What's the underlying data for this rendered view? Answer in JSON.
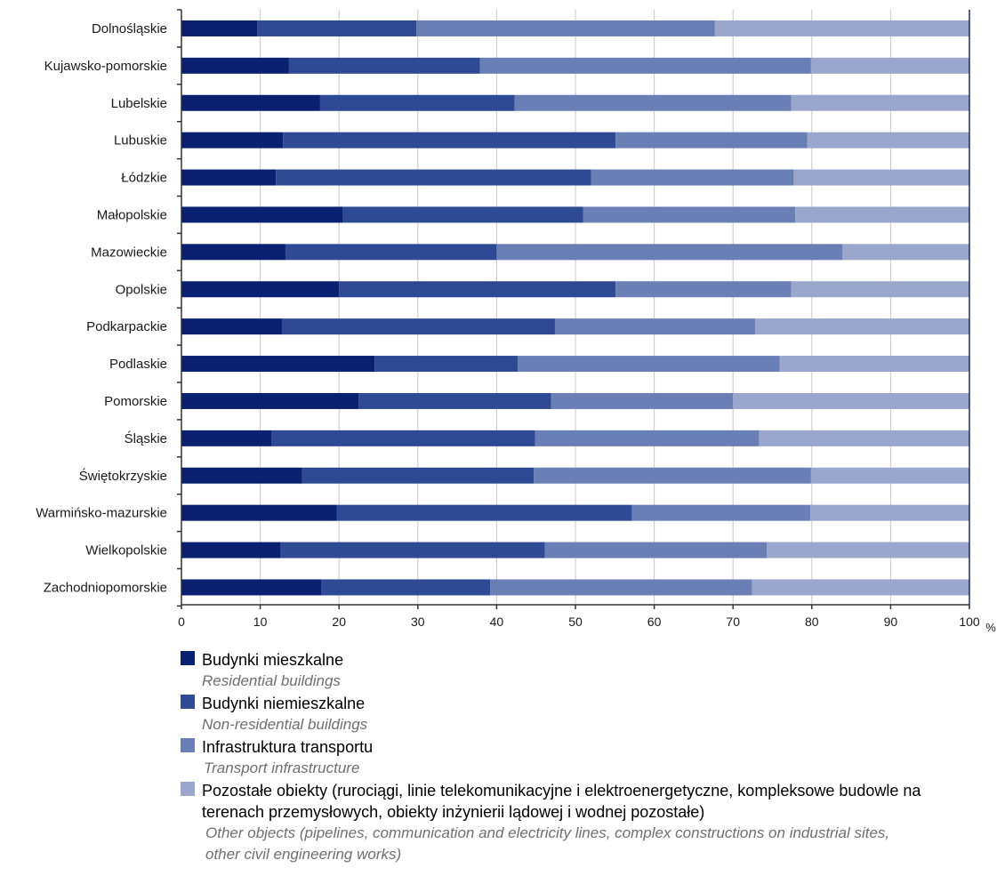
{
  "chart_data": {
    "type": "bar",
    "orientation": "horizontal",
    "stacked": true,
    "categories": [
      "Dolnośląskie",
      "Kujawsko-pomorskie",
      "Lubelskie",
      "Lubuskie",
      "Łódzkie",
      "Małopolskie",
      "Mazowieckie",
      "Opolskie",
      "Podkarpackie",
      "Podlaskie",
      "Pomorskie",
      "Śląskie",
      "Świętokrzyskie",
      "Warmińsko-mazurskie",
      "Wielkopolskie",
      "Zachodniopomorskie"
    ],
    "series": [
      {
        "name": "Budynki mieszkalne",
        "name_en": "Residential buildings",
        "color": "#0a2070",
        "values": [
          9.6,
          13.6,
          17.6,
          12.9,
          12.0,
          20.5,
          13.2,
          20.0,
          12.8,
          24.5,
          22.5,
          11.4,
          15.3,
          19.7,
          12.6,
          17.8
        ]
      },
      {
        "name": "Budynki niemieszkalne",
        "name_en": "Non-residential buildings",
        "color": "#2f4a94",
        "values": [
          20.2,
          24.3,
          24.7,
          42.2,
          40.0,
          30.5,
          26.8,
          35.1,
          34.6,
          18.2,
          24.4,
          33.5,
          29.4,
          37.5,
          33.5,
          21.4
        ]
      },
      {
        "name": "Infrastruktura transportu",
        "name_en": "Transport infrastructure",
        "color": "#6a7fb5",
        "values": [
          37.9,
          42.0,
          35.1,
          24.3,
          25.7,
          26.9,
          43.9,
          22.3,
          25.4,
          33.2,
          23.1,
          28.4,
          35.2,
          22.6,
          28.2,
          33.2
        ]
      },
      {
        "name": "Pozostałe obiekty (rurociągi, linie telekomunikacyjne i elektroenergetyczne, kompleksowe budowle na terenach przemysłowych, obiekty inżynierii lądowej i wodnej pozostałe)",
        "name_en": "Other objects (pipelines, communication and electricity lines, complex constructions on industrial sites, other civil engineering works)",
        "color": "#9aa6cc",
        "values": [
          32.3,
          20.1,
          22.6,
          20.6,
          22.3,
          22.1,
          16.1,
          22.6,
          27.2,
          24.1,
          30.0,
          26.7,
          20.1,
          20.2,
          25.7,
          27.6
        ]
      }
    ],
    "x_ticks": [
      "0",
      "10",
      "20",
      "30",
      "40",
      "50",
      "60",
      "70",
      "80",
      "90",
      "100"
    ],
    "x_unit": "%",
    "xlim": [
      0,
      100
    ],
    "grid": true,
    "legend_placement": "bottom"
  },
  "legend": {
    "items": [
      {
        "pl": "Budynki mieszkalne",
        "en": "Residential buildings"
      },
      {
        "pl": "Budynki niemieszkalne",
        "en": "Non-residential buildings"
      },
      {
        "pl": "Infrastruktura transportu",
        "en": "Transport infrastructure"
      },
      {
        "pl": "Pozostałe obiekty (rurociągi, linie telekomunikacyjne i elektroenergetyczne, kompleksowe budowle na terenach przemysłowych, obiekty inżynierii lądowej i wodnej pozostałe)",
        "en": "Other objects (pipelines, communication and electricity lines, complex constructions on industrial sites, other civil engineering works)"
      }
    ]
  }
}
